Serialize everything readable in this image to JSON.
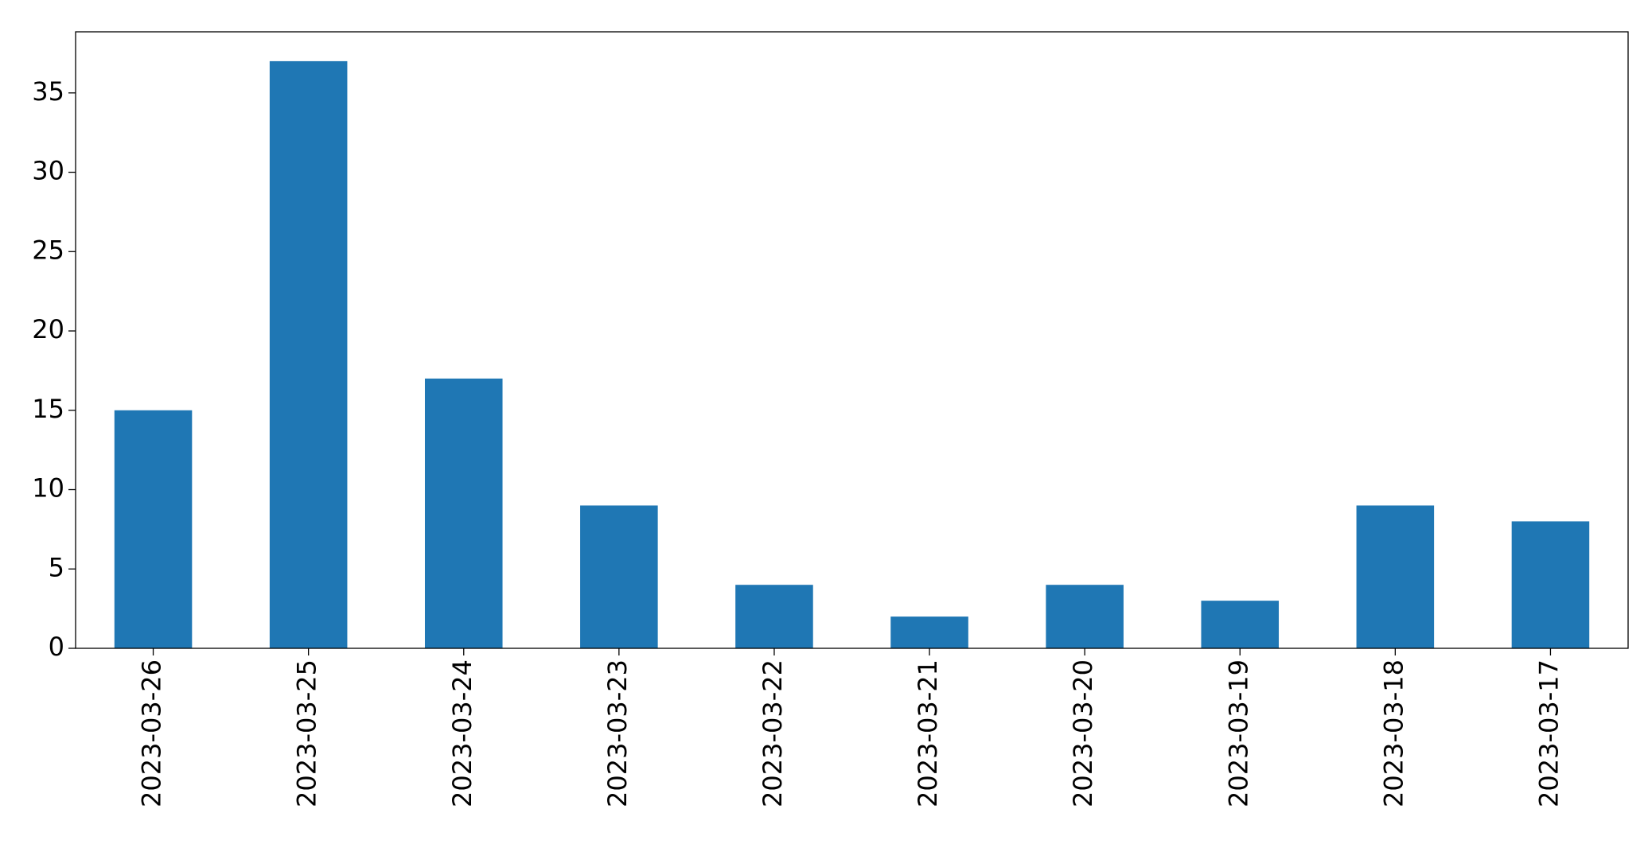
{
  "chart_data": {
    "type": "bar",
    "categories": [
      "2023-03-26",
      "2023-03-25",
      "2023-03-24",
      "2023-03-23",
      "2023-03-22",
      "2023-03-21",
      "2023-03-20",
      "2023-03-19",
      "2023-03-18",
      "2023-03-17"
    ],
    "values": [
      15,
      37,
      17,
      9,
      4,
      2,
      4,
      3,
      9,
      8
    ],
    "color": "#1f77b4",
    "ylim": [
      0,
      38.85
    ],
    "yticks": [
      0,
      5,
      10,
      15,
      20,
      25,
      30,
      35
    ],
    "grid": false
  }
}
